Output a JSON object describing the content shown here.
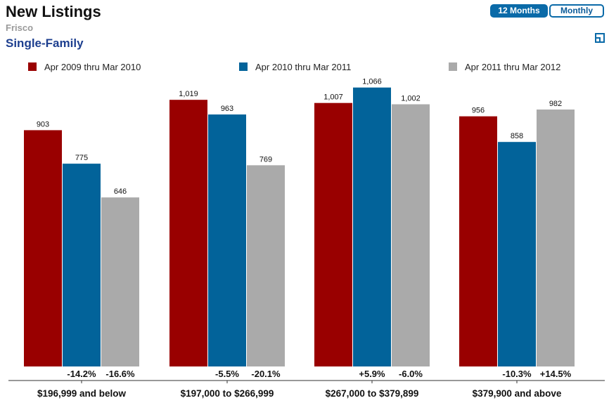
{
  "header": {
    "title": "New Listings",
    "subtitle": "Frisco",
    "section": "Single-Family"
  },
  "controls": {
    "twelve_months": "12 Months",
    "monthly": "Monthly",
    "active": "12 Months"
  },
  "colors": {
    "series1": "#990000",
    "series2": "#02639a",
    "series3": "#aaaaaa",
    "accent": "#0a6aa8"
  },
  "chart_data": {
    "type": "bar",
    "title": "New Listings",
    "subtitle": "Frisco",
    "categories": [
      "$196,999 and below",
      "$197,000 to $266,999",
      "$267,000 to $379,899",
      "$379,900 and above"
    ],
    "series": [
      {
        "name": "Apr 2009 thru Mar 2010",
        "values": [
          903,
          1019,
          1007,
          956
        ],
        "value_labels": [
          "903",
          "1,019",
          "1,007",
          "956"
        ]
      },
      {
        "name": "Apr 2010 thru Mar 2011",
        "values": [
          775,
          963,
          1066,
          858
        ],
        "value_labels": [
          "775",
          "963",
          "1,066",
          "858"
        ],
        "change_labels": [
          "-14.2%",
          "-5.5%",
          "+5.9%",
          "-10.3%"
        ]
      },
      {
        "name": "Apr 2011 thru Mar 2012",
        "values": [
          646,
          769,
          1002,
          982
        ],
        "value_labels": [
          "646",
          "769",
          "1,002",
          "982"
        ],
        "change_labels": [
          "-16.6%",
          "-20.1%",
          "-6.0%",
          "+14.5%"
        ]
      }
    ],
    "ylim": [
      0,
      1100
    ],
    "grid": false,
    "legend_position": "top"
  }
}
